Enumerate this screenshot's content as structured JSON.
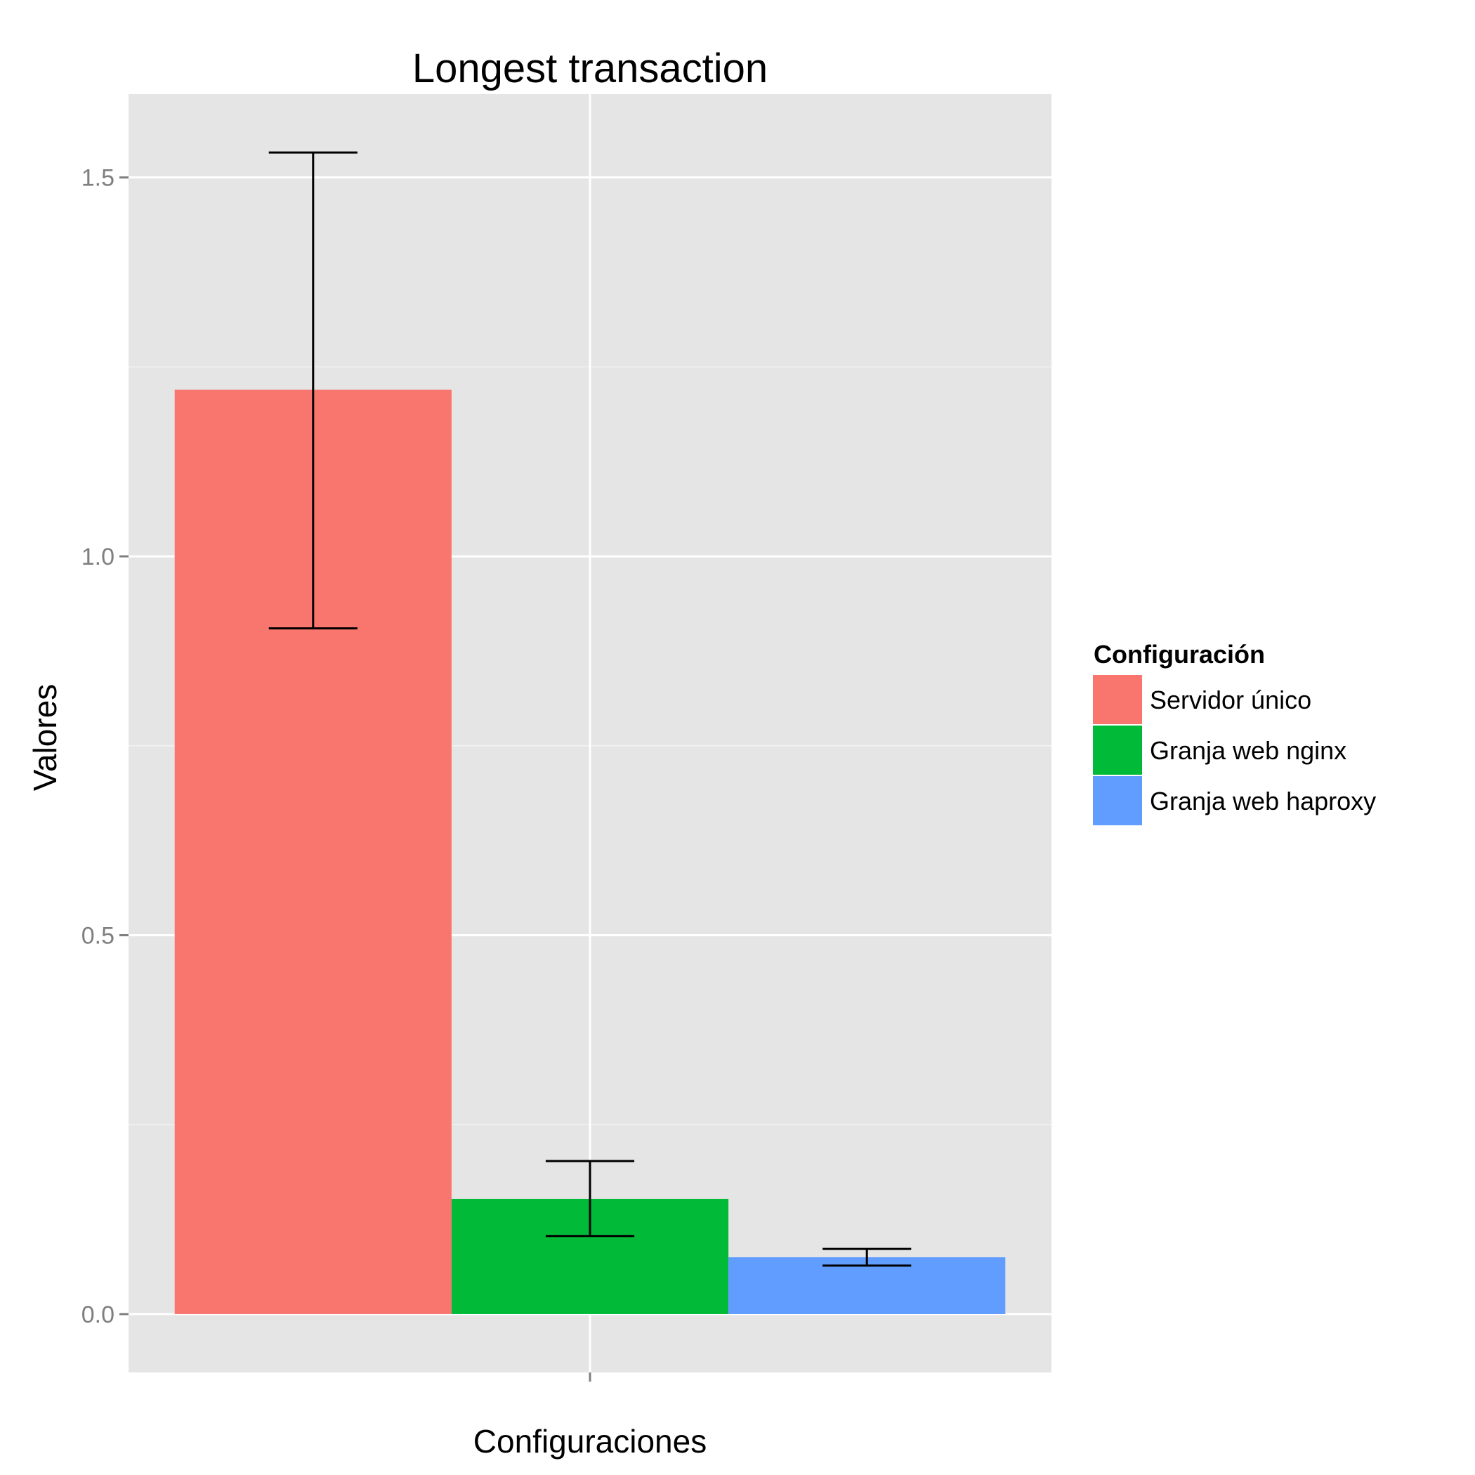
{
  "chart_data": {
    "type": "bar",
    "title": "Longest transaction",
    "xlabel": "Configuraciones",
    "ylabel": "Valores",
    "ylim": [
      -0.077,
      1.61
    ],
    "yticks": [
      0.0,
      0.5,
      1.0,
      1.5
    ],
    "ytick_labels": [
      "0.0",
      "0.5",
      "1.0",
      "1.5"
    ],
    "grid": true,
    "legend": {
      "title": "Configuración",
      "position": "right"
    },
    "series": [
      {
        "name": "Servidor único",
        "value": 1.22,
        "error_low": 0.905,
        "error_high": 1.533,
        "color": "#F8766D"
      },
      {
        "name": "Granja web nginx",
        "value": 0.152,
        "error_low": 0.103,
        "error_high": 0.202,
        "color": "#00BA38"
      },
      {
        "name": "Granja web haproxy",
        "value": 0.075,
        "error_low": 0.064,
        "error_high": 0.086,
        "color": "#619CFF"
      }
    ],
    "colors": {
      "panel": "#E5E5E5",
      "grid_major": "#FFFFFF",
      "grid_minor": "#F2F2F2",
      "error_bar": "#000000",
      "tick": "#7F7F7F"
    }
  }
}
